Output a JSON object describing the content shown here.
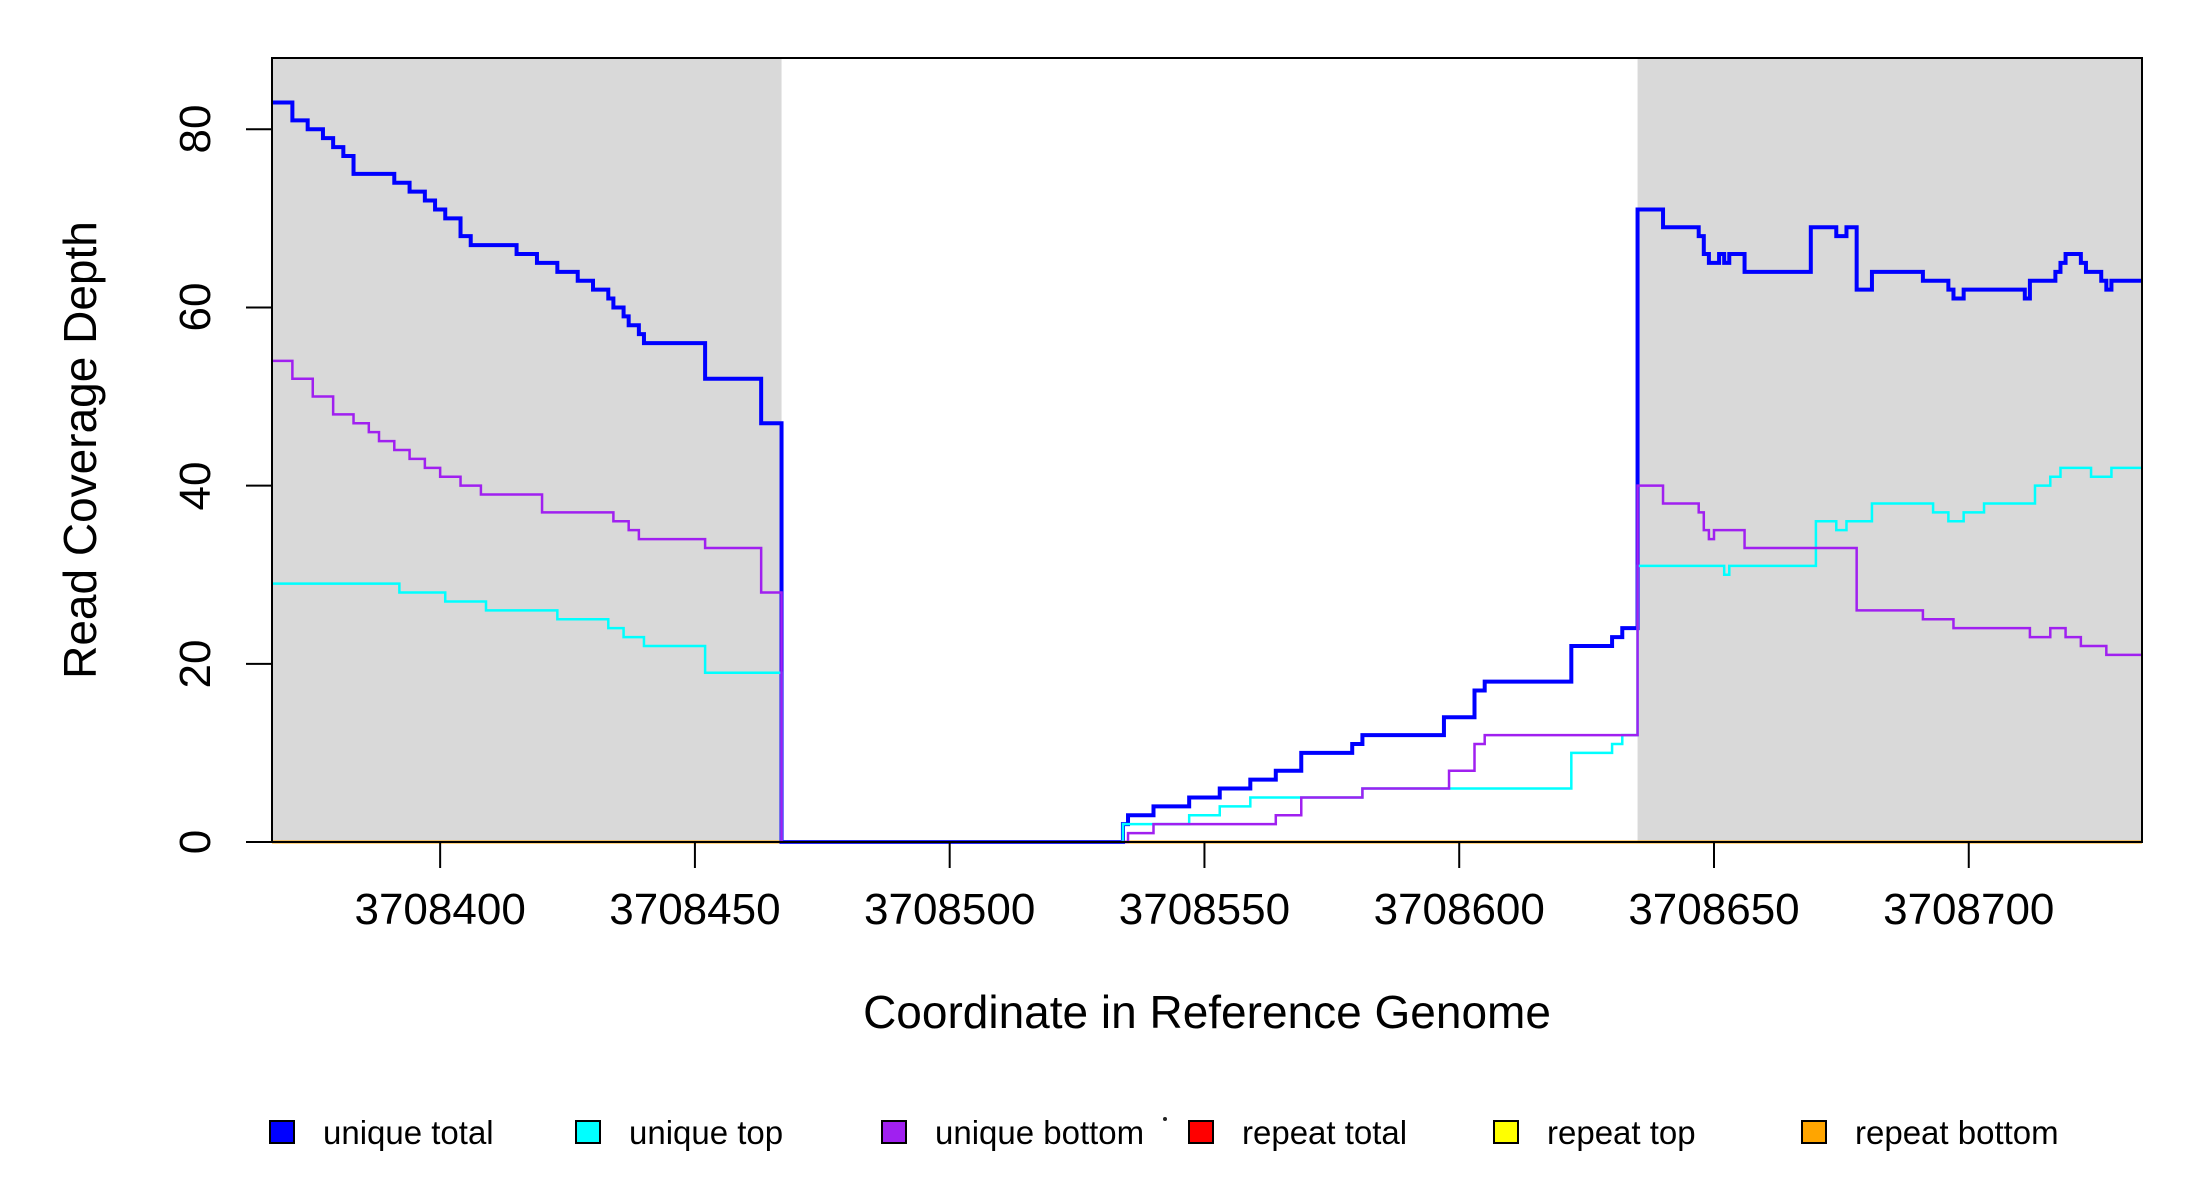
{
  "y_axis": {
    "title": "Read Coverage Depth",
    "ticks": [
      {
        "label": "0",
        "value": 0
      },
      {
        "label": "20",
        "value": 20
      },
      {
        "label": "40",
        "value": 40
      },
      {
        "label": "60",
        "value": 60
      },
      {
        "label": "80",
        "value": 80
      }
    ]
  },
  "x_axis": {
    "title": "Coordinate in Reference Genome",
    "ticks": [
      {
        "label": "3708400",
        "value": 3708400
      },
      {
        "label": "3708450",
        "value": 3708450
      },
      {
        "label": "3708500",
        "value": 3708500
      },
      {
        "label": "3708550",
        "value": 3708550
      },
      {
        "label": "3708600",
        "value": 3708600
      },
      {
        "label": "3708650",
        "value": 3708650
      },
      {
        "label": "3708700",
        "value": 3708700
      }
    ]
  },
  "legend": [
    {
      "label": "unique total",
      "color": "#0000FF"
    },
    {
      "label": "unique top",
      "color": "#00FFFF"
    },
    {
      "label": "unique bottom",
      "color": "#A020F0"
    },
    {
      "label": "repeat total",
      "color": "#FF0000"
    },
    {
      "label": "repeat top",
      "color": "#FFFF00"
    },
    {
      "label": "repeat bottom",
      "color": "#FFA500"
    }
  ],
  "chart_data": {
    "type": "line",
    "subtype": "step",
    "title": "",
    "xlabel": "Coordinate in Reference Genome",
    "ylabel": "Read Coverage Depth",
    "xlim": [
      3708367,
      3708734
    ],
    "ylim": [
      0,
      88
    ],
    "grid": false,
    "legend_position": "bottom",
    "shade_color": "#D9D9D9",
    "shaded_regions": [
      {
        "x0": 3708367,
        "x1": 3708467
      },
      {
        "x0": 3708635,
        "x1": 3708734
      }
    ],
    "series": [
      {
        "name": "repeat total",
        "color": "#FF0000",
        "width": 2,
        "points": [
          [
            3708367,
            0
          ],
          [
            3708734,
            0
          ]
        ]
      },
      {
        "name": "repeat top",
        "color": "#FFFF00",
        "width": 2,
        "points": [
          [
            3708367,
            0
          ],
          [
            3708734,
            0
          ]
        ]
      },
      {
        "name": "repeat bottom",
        "color": "#FFA500",
        "width": 3,
        "points": [
          [
            3708367,
            0
          ],
          [
            3708734,
            0
          ]
        ]
      },
      {
        "name": "unique total",
        "color": "#0000FF",
        "width": 4,
        "points": [
          [
            3708367,
            83
          ],
          [
            3708371,
            81
          ],
          [
            3708374,
            80
          ],
          [
            3708377,
            79
          ],
          [
            3708379,
            78
          ],
          [
            3708381,
            77
          ],
          [
            3708383,
            75
          ],
          [
            3708391,
            74
          ],
          [
            3708394,
            73
          ],
          [
            3708397,
            72
          ],
          [
            3708399,
            71
          ],
          [
            3708401,
            70
          ],
          [
            3708404,
            68
          ],
          [
            3708406,
            67
          ],
          [
            3708415,
            66
          ],
          [
            3708419,
            65
          ],
          [
            3708423,
            64
          ],
          [
            3708427,
            63
          ],
          [
            3708430,
            62
          ],
          [
            3708433,
            61
          ],
          [
            3708434,
            60
          ],
          [
            3708436,
            59
          ],
          [
            3708437,
            58
          ],
          [
            3708439,
            57
          ],
          [
            3708440,
            56
          ],
          [
            3708452,
            52
          ],
          [
            3708463,
            47
          ],
          [
            3708467,
            0
          ],
          [
            3708534,
            2
          ],
          [
            3708535,
            3
          ],
          [
            3708540,
            4
          ],
          [
            3708547,
            5
          ],
          [
            3708553,
            6
          ],
          [
            3708559,
            7
          ],
          [
            3708564,
            8
          ],
          [
            3708569,
            10
          ],
          [
            3708579,
            11
          ],
          [
            3708581,
            12
          ],
          [
            3708597,
            14
          ],
          [
            3708603,
            17
          ],
          [
            3708605,
            18
          ],
          [
            3708622,
            22
          ],
          [
            3708630,
            23
          ],
          [
            3708632,
            24
          ],
          [
            3708635,
            71
          ],
          [
            3708640,
            69
          ],
          [
            3708647,
            68
          ],
          [
            3708648,
            66
          ],
          [
            3708649,
            65
          ],
          [
            3708651,
            66
          ],
          [
            3708652,
            65
          ],
          [
            3708653,
            66
          ],
          [
            3708656,
            64
          ],
          [
            3708669,
            69
          ],
          [
            3708674,
            68
          ],
          [
            3708676,
            69
          ],
          [
            3708678,
            62
          ],
          [
            3708681,
            64
          ],
          [
            3708691,
            63
          ],
          [
            3708696,
            62
          ],
          [
            3708697,
            61
          ],
          [
            3708699,
            62
          ],
          [
            3708711,
            61
          ],
          [
            3708712,
            63
          ],
          [
            3708717,
            64
          ],
          [
            3708718,
            65
          ],
          [
            3708719,
            66
          ],
          [
            3708722,
            65
          ],
          [
            3708723,
            64
          ],
          [
            3708726,
            63
          ],
          [
            3708727,
            62
          ],
          [
            3708728,
            63
          ],
          [
            3708734,
            63
          ]
        ]
      },
      {
        "name": "unique top",
        "color": "#00FFFF",
        "width": 2.5,
        "points": [
          [
            3708367,
            29
          ],
          [
            3708392,
            28
          ],
          [
            3708401,
            27
          ],
          [
            3708409,
            26
          ],
          [
            3708423,
            25
          ],
          [
            3708433,
            24
          ],
          [
            3708436,
            23
          ],
          [
            3708440,
            22
          ],
          [
            3708452,
            19
          ],
          [
            3708467,
            0
          ],
          [
            3708534,
            2
          ],
          [
            3708547,
            3
          ],
          [
            3708553,
            4
          ],
          [
            3708559,
            5
          ],
          [
            3708581,
            6
          ],
          [
            3708622,
            10
          ],
          [
            3708630,
            11
          ],
          [
            3708632,
            12
          ],
          [
            3708635,
            31
          ],
          [
            3708652,
            30
          ],
          [
            3708653,
            31
          ],
          [
            3708670,
            36
          ],
          [
            3708674,
            35
          ],
          [
            3708676,
            36
          ],
          [
            3708681,
            38
          ],
          [
            3708693,
            37
          ],
          [
            3708696,
            36
          ],
          [
            3708699,
            37
          ],
          [
            3708703,
            38
          ],
          [
            3708713,
            40
          ],
          [
            3708716,
            41
          ],
          [
            3708718,
            42
          ],
          [
            3708724,
            41
          ],
          [
            3708728,
            42
          ],
          [
            3708734,
            42
          ]
        ]
      },
      {
        "name": "unique bottom",
        "color": "#A020F0",
        "width": 2.5,
        "points": [
          [
            3708367,
            54
          ],
          [
            3708371,
            52
          ],
          [
            3708375,
            50
          ],
          [
            3708379,
            48
          ],
          [
            3708383,
            47
          ],
          [
            3708386,
            46
          ],
          [
            3708388,
            45
          ],
          [
            3708391,
            44
          ],
          [
            3708394,
            43
          ],
          [
            3708397,
            42
          ],
          [
            3708400,
            41
          ],
          [
            3708404,
            40
          ],
          [
            3708408,
            39
          ],
          [
            3708420,
            37
          ],
          [
            3708434,
            36
          ],
          [
            3708437,
            35
          ],
          [
            3708439,
            34
          ],
          [
            3708452,
            33
          ],
          [
            3708463,
            28
          ],
          [
            3708467,
            0
          ],
          [
            3708535,
            1
          ],
          [
            3708540,
            2
          ],
          [
            3708564,
            3
          ],
          [
            3708569,
            5
          ],
          [
            3708581,
            6
          ],
          [
            3708598,
            8
          ],
          [
            3708603,
            11
          ],
          [
            3708605,
            12
          ],
          [
            3708635,
            40
          ],
          [
            3708640,
            38
          ],
          [
            3708647,
            37
          ],
          [
            3708648,
            35
          ],
          [
            3708649,
            34
          ],
          [
            3708650,
            35
          ],
          [
            3708656,
            33
          ],
          [
            3708678,
            26
          ],
          [
            3708691,
            25
          ],
          [
            3708697,
            24
          ],
          [
            3708712,
            23
          ],
          [
            3708716,
            24
          ],
          [
            3708719,
            23
          ],
          [
            3708722,
            22
          ],
          [
            3708727,
            21
          ],
          [
            3708734,
            21
          ]
        ]
      }
    ]
  }
}
